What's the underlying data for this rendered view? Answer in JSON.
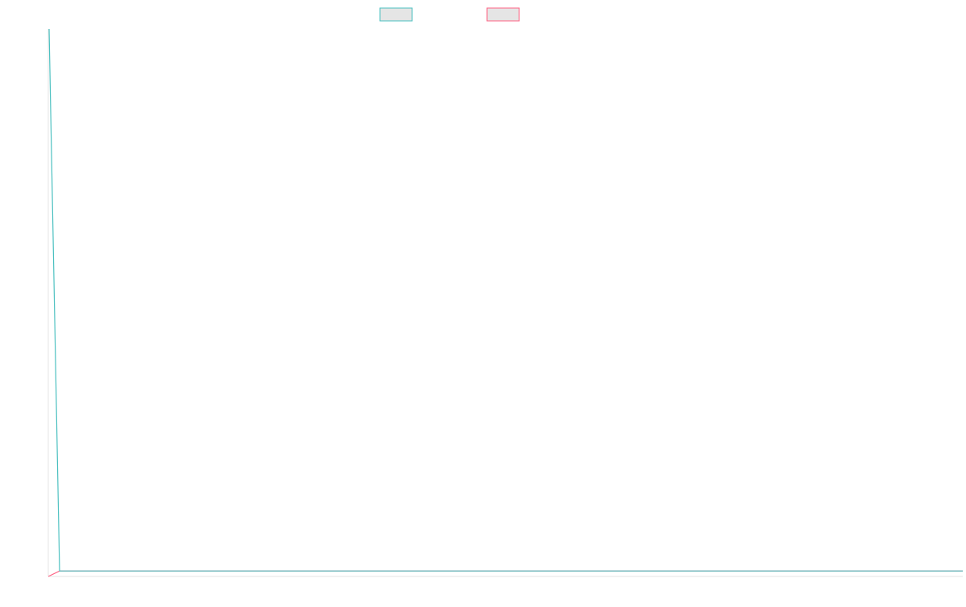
{
  "chart_data": {
    "type": "line",
    "title": "",
    "xlabel": "",
    "ylabel": "",
    "grid": false,
    "legend_position": "top-center",
    "ylim": [
      0,
      100
    ],
    "x": [
      0,
      1,
      2,
      3,
      4,
      5,
      6,
      7,
      8,
      9,
      10,
      11,
      12,
      13,
      14,
      15,
      16,
      17,
      18,
      19,
      20,
      21,
      22,
      23,
      24,
      25,
      26,
      27,
      28,
      29,
      30,
      31,
      32,
      33,
      34,
      35,
      36,
      37,
      38,
      39,
      40,
      41,
      42,
      43,
      44,
      45,
      46,
      47,
      48,
      49,
      50,
      51,
      52,
      53,
      54,
      55,
      56,
      57,
      58,
      59,
      60,
      61,
      62,
      63,
      64,
      65,
      66,
      67,
      68,
      69,
      70,
      71,
      72,
      73,
      74,
      75,
      76,
      77,
      78,
      79,
      80,
      81,
      82,
      83,
      84,
      85,
      86,
      87
    ],
    "series": [
      {
        "color": "#4bc0c0",
        "fill": "#e5e5e5",
        "values": [
          100,
          1,
          1,
          1,
          1,
          1,
          1,
          1,
          1,
          1,
          1,
          1,
          1,
          1,
          1,
          1,
          1,
          1,
          1,
          1,
          1,
          1,
          1,
          1,
          1,
          1,
          1,
          1,
          1,
          1,
          1,
          1,
          1,
          1,
          1,
          1,
          1,
          1,
          1,
          1,
          1,
          1,
          1,
          1,
          1,
          1,
          1,
          1,
          1,
          1,
          1,
          1,
          1,
          1,
          1,
          1,
          1,
          1,
          1,
          1,
          1,
          1,
          1,
          1,
          1,
          1,
          1,
          1,
          1,
          1,
          1,
          1,
          1,
          1,
          1,
          1,
          1,
          1,
          1,
          1,
          1,
          1,
          1,
          1,
          1,
          1,
          1,
          1
        ]
      },
      {
        "color": "#ff6384",
        "fill": "#e5e5e5",
        "values": [
          0,
          1,
          1,
          1,
          1,
          1,
          1,
          1,
          1,
          1,
          1,
          1,
          1,
          1,
          1,
          1,
          1,
          1,
          1,
          1,
          1,
          1,
          1,
          1,
          1,
          1,
          1,
          1,
          1,
          1,
          1,
          1,
          1,
          1,
          1,
          1,
          1,
          1,
          1,
          1,
          1,
          1,
          1,
          1,
          1,
          1,
          1,
          1,
          1,
          1,
          1,
          1,
          1,
          1,
          1,
          1,
          1,
          1,
          1,
          1,
          1,
          1,
          1,
          1,
          1,
          1,
          1,
          1,
          1,
          1,
          1,
          1,
          1,
          1,
          1,
          1,
          1,
          1,
          1,
          1,
          1,
          1,
          1,
          1,
          1,
          1,
          1,
          1
        ]
      }
    ]
  }
}
